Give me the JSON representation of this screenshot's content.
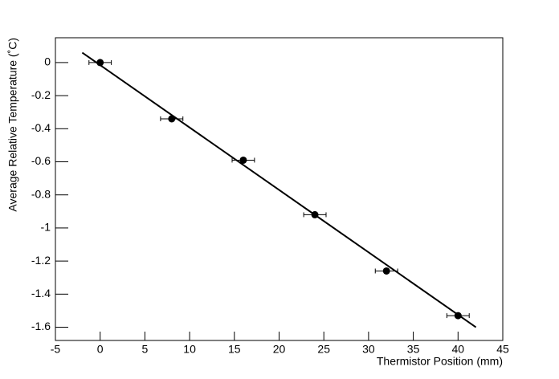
{
  "chart_data": {
    "type": "scatter",
    "xlabel": "Thermistor Position (mm)",
    "ylabel": "Average Relative Temperature (˚C)",
    "x": [
      0,
      8,
      16,
      24,
      32,
      40
    ],
    "values": [
      0,
      -0.34,
      -0.59,
      -0.92,
      -1.26,
      -1.53
    ],
    "xerr": [
      1.25,
      1.25,
      1.25,
      1.25,
      1.25,
      1.25
    ],
    "color": "#000000",
    "fit": {
      "x": [
        -2,
        42
      ],
      "values": [
        0.06,
        -1.6
      ],
      "color": "#000000"
    },
    "xlim": [
      -5,
      45
    ],
    "xticks": [
      -5,
      0,
      5,
      10,
      15,
      20,
      25,
      30,
      35,
      40,
      45
    ],
    "ylim": [
      -1.68,
      0.15
    ],
    "yticks": [
      0,
      -0.2,
      -0.4,
      -0.6,
      -0.8,
      -1,
      -1.2,
      -1.4,
      -1.6
    ]
  }
}
